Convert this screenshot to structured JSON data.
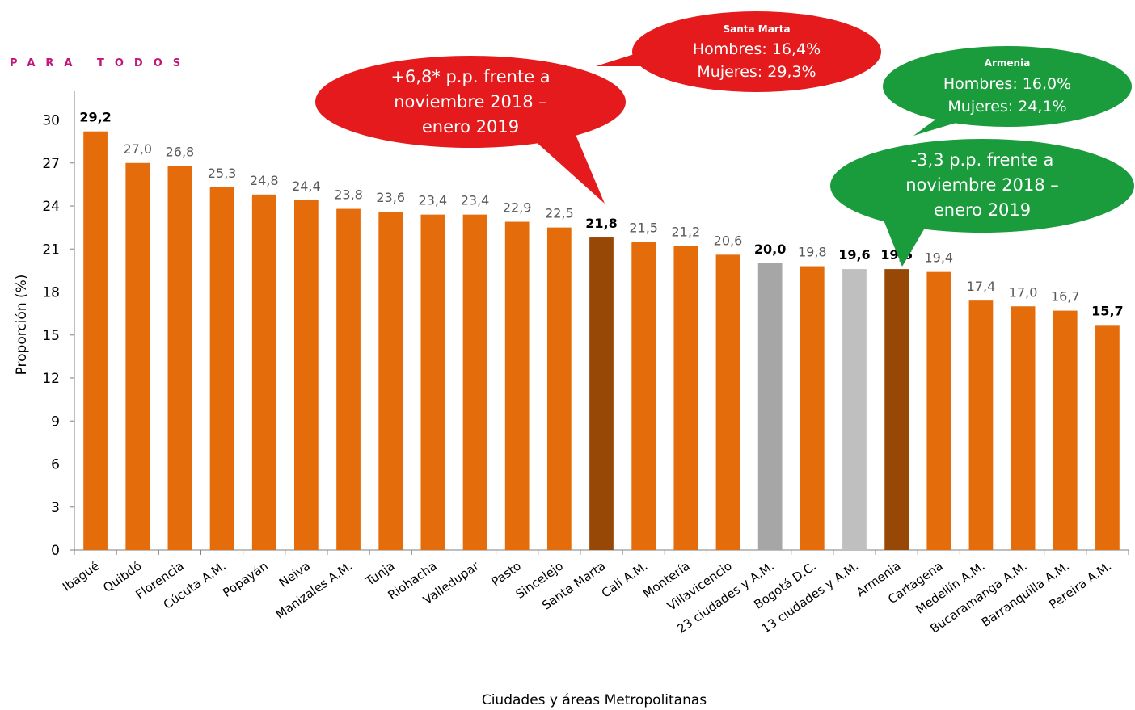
{
  "header": {
    "tagline": "PARA TODOS"
  },
  "colors": {
    "bar": "#e46c0a",
    "highlight": "#974706",
    "national_23": "#a6a6a6",
    "national_13": "#bfbfbf",
    "callout_red": "#e41a1c",
    "callout_green": "#1a9b3c"
  },
  "chart_data": {
    "type": "bar",
    "xlabel": "Ciudades y áreas Metropolitanas",
    "ylabel": "Proporción (%)",
    "ylim": [
      0,
      32
    ],
    "yticks": [
      0,
      3,
      6,
      9,
      12,
      15,
      18,
      21,
      24,
      27,
      30
    ],
    "categories": [
      "Ibagué",
      "Quibdó",
      "Florencia",
      "Cúcuta A.M.",
      "Popayán",
      "Neiva",
      "Manizales A.M.",
      "Tunja",
      "Riohacha",
      "Valledupar",
      "Pasto",
      "Sincelejo",
      "Santa Marta",
      "Cali A.M.",
      "Montería",
      "Villavicencio",
      "23 ciudades y A.M.",
      "Bogotá D.C.",
      "13 ciudades y A.M.",
      "Armenia",
      "Cartagena",
      "Medellín A.M.",
      "Bucaramanga A.M.",
      "Barranquilla A.M.",
      "Pereira A.M."
    ],
    "values": [
      29.2,
      27.0,
      26.8,
      25.3,
      24.8,
      24.4,
      23.8,
      23.6,
      23.4,
      23.4,
      22.9,
      22.5,
      21.8,
      21.5,
      21.2,
      20.6,
      20.0,
      19.8,
      19.6,
      19.6,
      19.4,
      17.4,
      17.0,
      16.7,
      15.7
    ],
    "value_labels": [
      "29,2",
      "27,0",
      "26,8",
      "25,3",
      "24,8",
      "24,4",
      "23,8",
      "23,6",
      "23,4",
      "23,4",
      "22,9",
      "22,5",
      "21,8",
      "21,5",
      "21,2",
      "20,6",
      "20,0",
      "19,8",
      "19,6",
      "19,6",
      "19,4",
      "17,4",
      "17,0",
      "16,7",
      "15,7"
    ],
    "bold_labels": [
      0,
      12,
      16,
      18,
      19,
      24
    ],
    "bar_colors": [
      "bar",
      "bar",
      "bar",
      "bar",
      "bar",
      "bar",
      "bar",
      "bar",
      "bar",
      "bar",
      "bar",
      "bar",
      "highlight",
      "bar",
      "bar",
      "bar",
      "national_23",
      "bar",
      "national_13",
      "highlight",
      "bar",
      "bar",
      "bar",
      "bar",
      "bar"
    ],
    "grid": false,
    "legend": "none"
  },
  "callouts": {
    "santa_marta_change": [
      "+6,8* p.p. frente a",
      "noviembre 2018 –",
      "enero 2019"
    ],
    "santa_marta_detail": {
      "title": "Santa Marta",
      "lines": [
        "Hombres: 16,4%",
        "Mujeres: 29,3%"
      ]
    },
    "armenia_detail": {
      "title": "Armenia",
      "lines": [
        "Hombres: 16,0%",
        "Mujeres: 24,1%"
      ]
    },
    "armenia_change": [
      "-3,3 p.p. frente a",
      "noviembre 2018 –",
      "enero 2019"
    ]
  }
}
